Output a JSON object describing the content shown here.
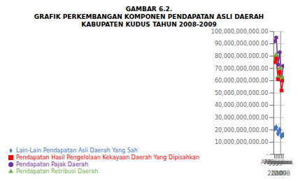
{
  "chart_data": {
    "type": "line",
    "title": "GAMBAR 6.2.\nGRAFIK PERKEMBANGAN KOMPONEN PENDAPATAN ASLI DAERAH\nKABUPATEN KUDUS TAHUN 2008-2009",
    "categories": [
      "Anggaran",
      "Realisasi",
      "Anggaran",
      "Realisasi",
      "Anggaran",
      "Realisasi"
    ],
    "series": [
      {
        "name": "Pendapatan Pajak Daerah",
        "color": "#7030A0",
        "marker": "circle",
        "values": [
          92000000000,
          95000000000,
          73000000000,
          83000000000,
          60000000000,
          72000000000
        ]
      },
      {
        "name": "Pendapatan Retribusi Daerah",
        "color": "#70AD47",
        "marker": "triangle",
        "values": [
          78000000000,
          81000000000,
          63000000000,
          70000000000,
          62000000000,
          62000000000
        ]
      },
      {
        "name": "Pendapatan Hasil Pengelolaan Kekayaan Daerah Yang Dipisahkan",
        "color": "#FF0000",
        "marker": "square",
        "values": [
          75000000000,
          78000000000,
          61000000000,
          67000000000,
          52000000000,
          60000000000
        ]
      },
      {
        "name": "Lain-Lain Pendapatan Asli Daerah Yang Sah",
        "color": "#4472C4",
        "marker": "diamond",
        "values": [
          21000000000,
          22000000000,
          17000000000,
          20000000000,
          15000000000,
          16000000000
        ]
      }
    ],
    "ylim": [
      0,
      100000000000
    ],
    "yticks": [
      {
        "value": 0,
        "label": "-"
      },
      {
        "value": 10000000000,
        "label": "10,000,000,000.00"
      },
      {
        "value": 20000000000,
        "label": "20,000,000,000.00"
      },
      {
        "value": 30000000000,
        "label": "30,000,000,000.00"
      },
      {
        "value": 40000000000,
        "label": "40,000,000,000.00"
      },
      {
        "value": 50000000000,
        "label": "50,000,000,000.00"
      },
      {
        "value": 60000000000,
        "label": "60,000,000,000.00"
      },
      {
        "value": 70000000000,
        "label": "70,000,000,000.00"
      },
      {
        "value": 80000000000,
        "label": "80,000,000,000.00"
      },
      {
        "value": 90000000000,
        "label": "90,000,000,000.00"
      },
      {
        "value": 100000000000,
        "label": "100,000,000,000.00"
      }
    ],
    "annotations": [
      {
        "text": "2010",
        "x": 0.5
      },
      {
        "text": "2009",
        "x": 2.5
      },
      {
        "text": "2008",
        "x": 4.5
      },
      {
        "type": "vline",
        "x": 3.5
      }
    ],
    "grid": true,
    "legend": "bottom"
  }
}
